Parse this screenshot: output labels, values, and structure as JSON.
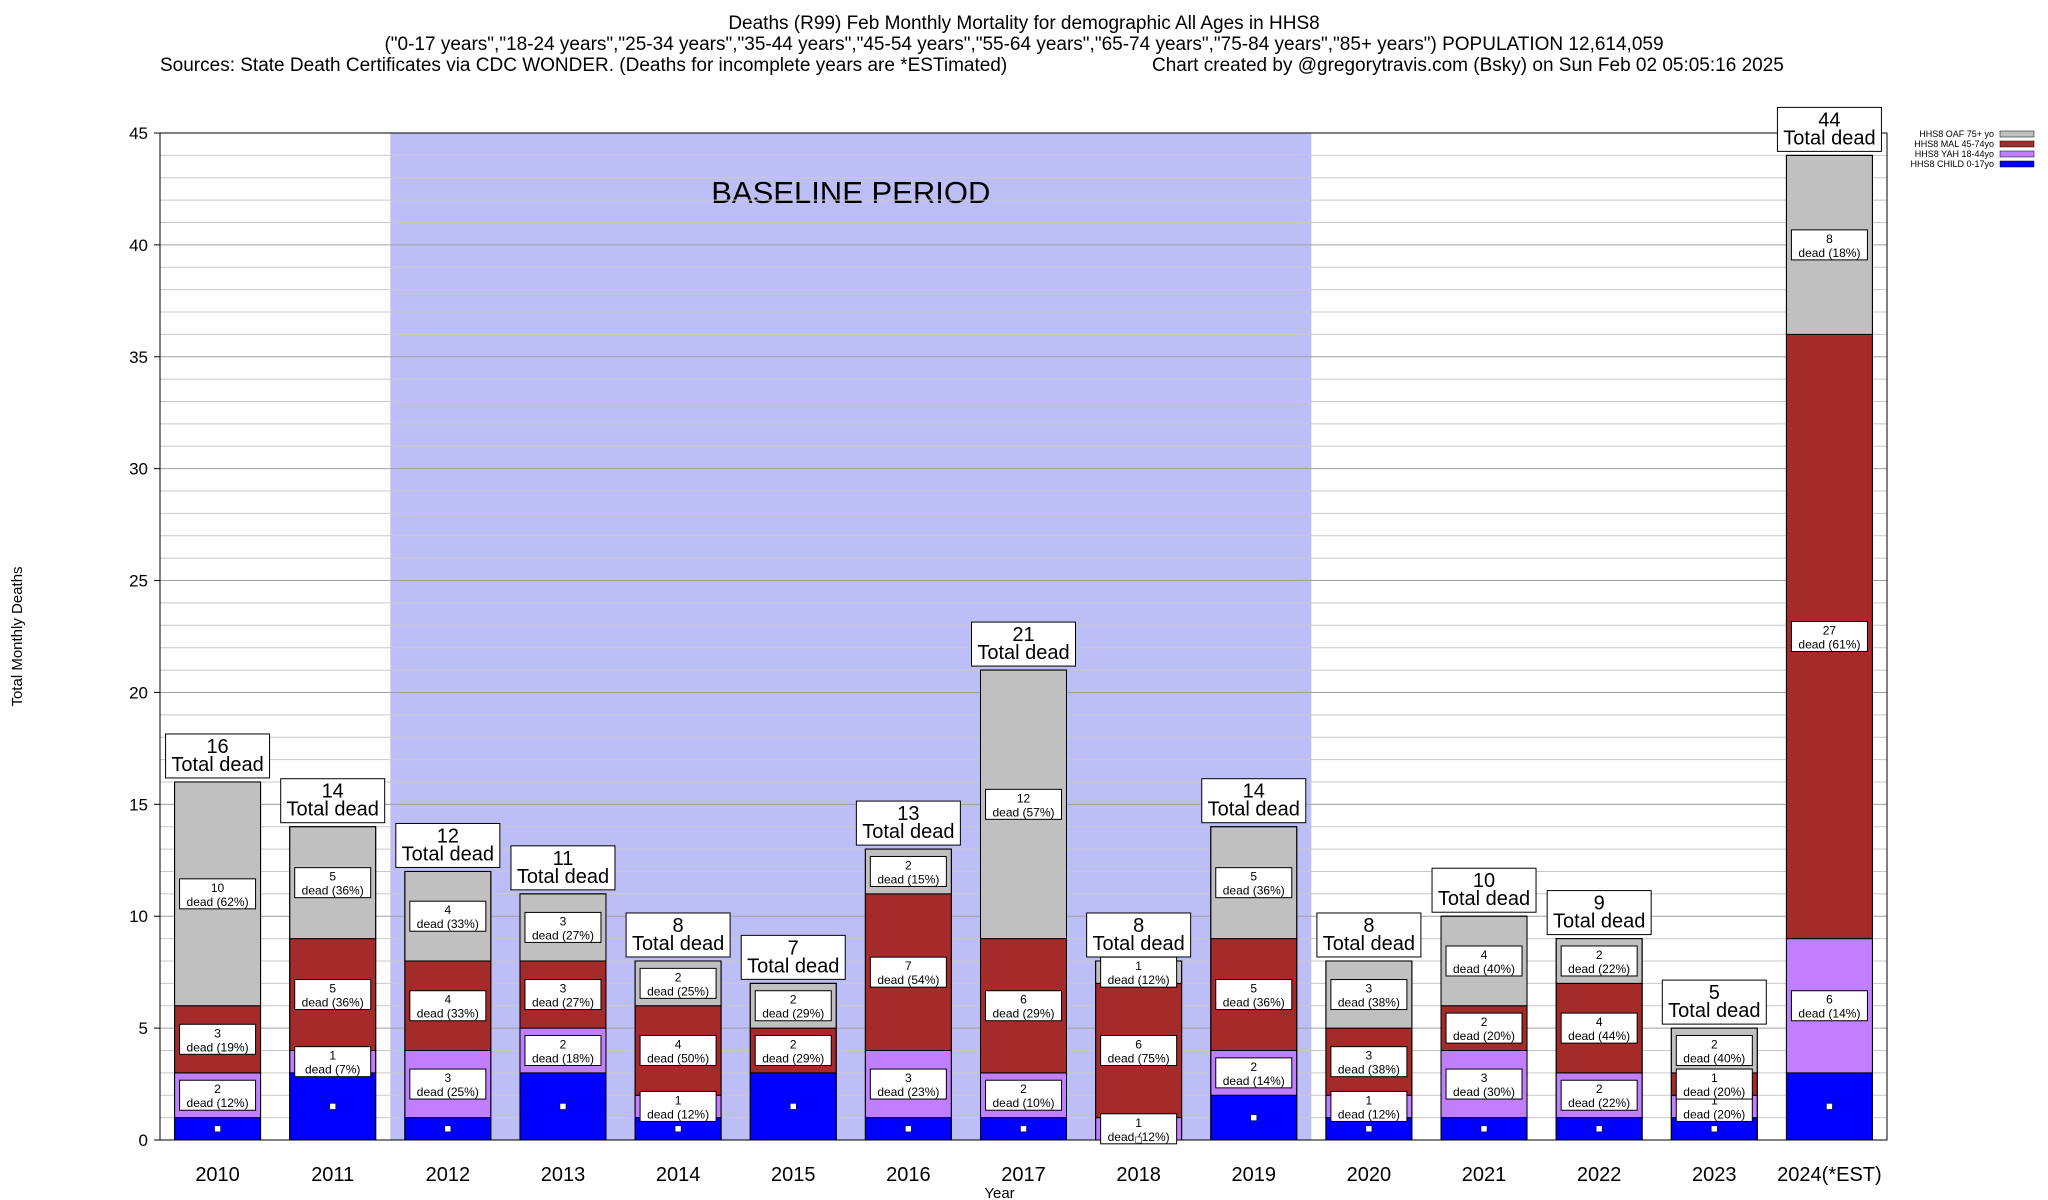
{
  "title": {
    "line1": "Deaths (R99) Feb Monthly Mortality for demographic All Ages in HHS8",
    "line2": "(\"0-17 years\",\"18-24 years\",\"25-34 years\",\"35-44 years\",\"45-54 years\",\"55-64 years\",\"65-74 years\",\"75-84 years\",\"85+ years\") POPULATION 12,614,059",
    "sources": "Sources: State Death Certificates via CDC WONDER. (Deaths for incomplete years are *ESTimated)",
    "credit": "Chart created by @gregorytravis.com (Bsky) on Sun Feb 02 05:05:16 2025"
  },
  "chart_data": {
    "type": "bar",
    "stacked": true,
    "xlabel": "Year",
    "ylabel": "Total Monthly Deaths",
    "ylim": [
      0,
      45
    ],
    "yticks": [
      0,
      5,
      10,
      15,
      20,
      25,
      30,
      35,
      40,
      45
    ],
    "minor_grid_step": 1,
    "grid": true,
    "legend_position": "top-right",
    "baseline_label": "BASELINE PERIOD",
    "baseline_range": [
      "2012",
      "2019"
    ],
    "total_suffix": "Total dead",
    "categories": [
      "2010",
      "2011",
      "2012",
      "2013",
      "2014",
      "2015",
      "2016",
      "2017",
      "2018",
      "2019",
      "2020",
      "2021",
      "2022",
      "2023",
      "2024(*EST)"
    ],
    "totals": [
      16,
      14,
      12,
      11,
      8,
      7,
      13,
      21,
      8,
      14,
      8,
      10,
      9,
      5,
      44
    ],
    "series": [
      {
        "name": "HHS8 CHILD 0-17yo",
        "color": "#0000ff",
        "values": [
          1,
          3,
          1,
          3,
          1,
          3,
          1,
          1,
          0,
          2,
          1,
          1,
          1,
          1,
          3
        ],
        "labels": [
          "",
          "",
          "",
          "",
          "",
          "",
          "",
          "",
          "",
          "",
          "",
          "",
          "",
          "",
          ""
        ]
      },
      {
        "name": "HHS8 YAH 18-44yo",
        "color": "#bf7fff",
        "values": [
          2,
          1,
          3,
          2,
          1,
          0,
          3,
          2,
          1,
          2,
          1,
          3,
          2,
          1,
          6
        ],
        "labels": [
          "2\ndead (12%)",
          "1\ndead (7%)",
          "3\ndead (25%)",
          "2\ndead (18%)",
          "1\ndead (12%)",
          "",
          "3\ndead (23%)",
          "2\ndead (10%)",
          "1\ndead (12%)",
          "2\ndead (14%)",
          "1\ndead (12%)",
          "3\ndead (30%)",
          "2\ndead (22%)",
          "1\ndead (20%)",
          "6\ndead (14%)"
        ]
      },
      {
        "name": "HHS8 MAL 45-74yo",
        "color": "#a52a2a",
        "values": [
          3,
          5,
          4,
          3,
          4,
          2,
          7,
          6,
          6,
          5,
          3,
          2,
          4,
          1,
          27
        ],
        "labels": [
          "3\ndead (19%)",
          "5\ndead (36%)",
          "4\ndead (33%)",
          "3\ndead (27%)",
          "4\ndead (50%)",
          "2\ndead (29%)",
          "7\ndead (54%)",
          "6\ndead (29%)",
          "6\ndead (75%)",
          "5\ndead (36%)",
          "3\ndead (38%)",
          "2\ndead (20%)",
          "4\ndead (44%)",
          "1\ndead (20%)",
          "27\ndead (61%)"
        ]
      },
      {
        "name": "HHS8 OAF 75+ yo",
        "color": "#c0c0c0",
        "values": [
          10,
          5,
          4,
          3,
          2,
          2,
          2,
          12,
          1,
          5,
          3,
          4,
          2,
          2,
          8
        ],
        "labels": [
          "10\ndead (62%)",
          "5\ndead (36%)",
          "4\ndead (33%)",
          "3\ndead (27%)",
          "2\ndead (25%)",
          "2\ndead (29%)",
          "2\ndead (15%)",
          "12\ndead (57%)",
          "1\ndead (12%)",
          "5\ndead (36%)",
          "3\ndead (38%)",
          "4\ndead (40%)",
          "2\ndead (22%)",
          "2\ndead (40%)",
          "8\ndead (18%)"
        ]
      }
    ]
  }
}
